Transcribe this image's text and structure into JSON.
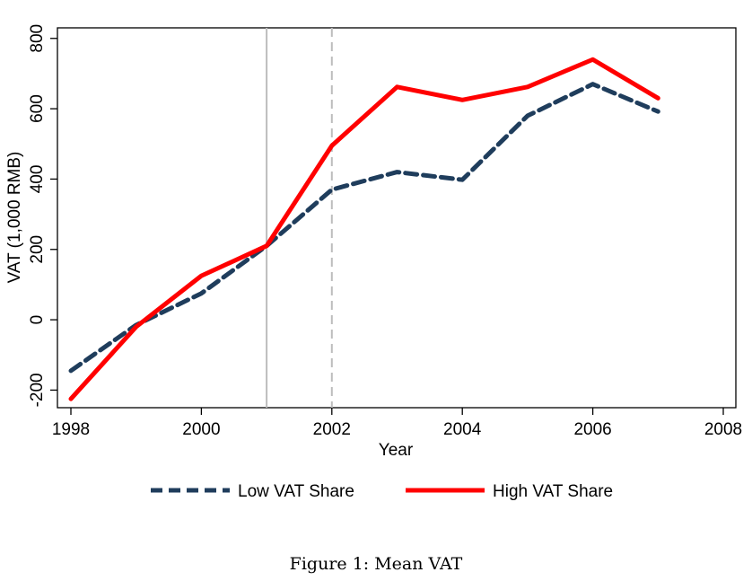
{
  "chart_data": {
    "type": "line",
    "xlabel": "Year",
    "ylabel": "VAT (1,000 RMB)",
    "xlim": [
      1998,
      2008
    ],
    "ylim": [
      -250,
      830
    ],
    "xticks": [
      1998,
      2000,
      2002,
      2004,
      2006,
      2008
    ],
    "yticks": [
      -200,
      0,
      200,
      400,
      600,
      800
    ],
    "vlines": [
      {
        "x": 2001,
        "style": "solid",
        "color": "#bdbdbd"
      },
      {
        "x": 2002,
        "style": "dashed",
        "color": "#bdbdbd"
      }
    ],
    "x": [
      1998,
      1999,
      2000,
      2001,
      2002,
      2003,
      2004,
      2005,
      2006,
      2007
    ],
    "series": [
      {
        "name": "Low VAT Share",
        "style": "dashed",
        "color": "#1f3d5c",
        "values": [
          -145,
          -15,
          75,
          210,
          370,
          420,
          398,
          580,
          670,
          592
        ]
      },
      {
        "name": "High VAT Share",
        "style": "solid",
        "color": "#ff0000",
        "values": [
          -225,
          -20,
          125,
          210,
          495,
          662,
          625,
          662,
          740,
          630
        ]
      }
    ],
    "grid": false,
    "legend_position": "bottom"
  },
  "caption": "Figure 1: Mean VAT"
}
